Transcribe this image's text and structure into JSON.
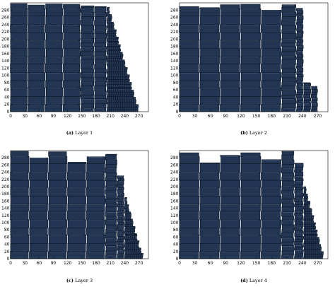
{
  "chart_data": [
    {
      "type": "bar",
      "caption_tag": "(a)",
      "caption_text": "Layer 1",
      "xticks": [
        0,
        30,
        60,
        90,
        120,
        150,
        180,
        210,
        240,
        270
      ],
      "yticks": [
        0,
        20,
        40,
        60,
        80,
        100,
        120,
        140,
        160,
        180,
        200,
        220,
        240,
        260,
        280
      ],
      "xlim": [
        0,
        290
      ],
      "ylim": [
        0,
        300
      ],
      "x_tick_labels": [
        "0",
        "30",
        "60",
        "90",
        "120",
        "150",
        "180",
        "210",
        "240",
        "270"
      ],
      "y_tick_labels": [
        "0",
        "20",
        "40",
        "60",
        "80",
        "100",
        "120",
        "140",
        "160",
        "180",
        "200",
        "220",
        "240",
        "260",
        "280"
      ],
      "stacks": [
        {
          "x0": 0,
          "x1": 36,
          "top": 298
        },
        {
          "x0": 37,
          "x1": 73,
          "top": 294
        },
        {
          "x0": 74,
          "x1": 110,
          "top": 297
        },
        {
          "x0": 111,
          "x1": 147,
          "top": 296
        },
        {
          "x0": 148,
          "x1": 176,
          "top": 292
        },
        {
          "x0": 177,
          "x1": 202,
          "top": 290
        }
      ],
      "tail": {
        "x0": 203,
        "x1": 268,
        "heights": [
          288,
          268,
          247,
          226,
          206,
          185,
          164,
          143,
          122,
          102,
          81,
          60,
          40,
          20
        ]
      }
    },
    {
      "type": "bar",
      "caption_tag": "(b)",
      "caption_text": "Layer 2",
      "xticks": [
        0,
        30,
        60,
        90,
        120,
        150,
        180,
        210,
        240,
        270
      ],
      "yticks": [
        0,
        20,
        40,
        60,
        80,
        100,
        120,
        140,
        160,
        180,
        200,
        220,
        240,
        260,
        280
      ],
      "xlim": [
        0,
        290
      ],
      "ylim": [
        0,
        300
      ],
      "x_tick_labels": [
        "0",
        "30",
        "60",
        "90",
        "120",
        "150",
        "180",
        "210",
        "240",
        "270"
      ],
      "y_tick_labels": [
        "0",
        "20",
        "40",
        "60",
        "80",
        "100",
        "120",
        "140",
        "160",
        "180",
        "200",
        "220",
        "240",
        "260",
        "280"
      ],
      "stacks": [
        {
          "x0": 0,
          "x1": 39,
          "top": 290
        },
        {
          "x0": 40,
          "x1": 79,
          "top": 287
        },
        {
          "x0": 80,
          "x1": 119,
          "top": 295
        },
        {
          "x0": 120,
          "x1": 159,
          "top": 296
        },
        {
          "x0": 160,
          "x1": 199,
          "top": 280
        },
        {
          "x0": 200,
          "x1": 228,
          "top": 295
        },
        {
          "x0": 229,
          "x1": 242,
          "top": 285
        },
        {
          "x0": 243,
          "x1": 257,
          "top": 80
        },
        {
          "x0": 258,
          "x1": 270,
          "top": 70
        }
      ],
      "tail": {
        "x0": 271,
        "x1": 272,
        "heights": []
      }
    },
    {
      "type": "bar",
      "caption_tag": "(c)",
      "caption_text": "Layer 3",
      "xticks": [
        0,
        30,
        60,
        90,
        120,
        150,
        180,
        210,
        240,
        270
      ],
      "yticks": [
        0,
        20,
        40,
        60,
        80,
        100,
        120,
        140,
        160,
        180,
        200,
        220,
        240,
        260,
        280
      ],
      "xlim": [
        0,
        290
      ],
      "ylim": [
        0,
        300
      ],
      "x_tick_labels": [
        "0",
        "30",
        "60",
        "90",
        "120",
        "150",
        "180",
        "210",
        "240",
        "270"
      ],
      "y_tick_labels": [
        "0",
        "20",
        "40",
        "60",
        "80",
        "100",
        "120",
        "140",
        "160",
        "180",
        "200",
        "220",
        "240",
        "260",
        "280"
      ],
      "stacks": [
        {
          "x0": 0,
          "x1": 39,
          "top": 298
        },
        {
          "x0": 40,
          "x1": 79,
          "top": 280
        },
        {
          "x0": 80,
          "x1": 119,
          "top": 297
        },
        {
          "x0": 120,
          "x1": 159,
          "top": 268
        },
        {
          "x0": 160,
          "x1": 199,
          "top": 283
        },
        {
          "x0": 200,
          "x1": 224,
          "top": 290
        },
        {
          "x0": 225,
          "x1": 239,
          "top": 230
        }
      ],
      "tail": {
        "x0": 240,
        "x1": 278,
        "heights": [
          170,
          150,
          130,
          110,
          90,
          70,
          50,
          30,
          15
        ]
      }
    },
    {
      "type": "bar",
      "caption_tag": "(d)",
      "caption_text": "Layer 4",
      "xticks": [
        0,
        30,
        60,
        90,
        120,
        150,
        180,
        210,
        240,
        270
      ],
      "yticks": [
        0,
        20,
        40,
        60,
        80,
        100,
        120,
        140,
        160,
        180,
        200,
        220,
        240,
        260,
        280
      ],
      "xlim": [
        0,
        290
      ],
      "ylim": [
        0,
        300
      ],
      "x_tick_labels": [
        "0",
        "30",
        "60",
        "90",
        "120",
        "150",
        "180",
        "210",
        "240",
        "270"
      ],
      "y_tick_labels": [
        "0",
        "20",
        "40",
        "60",
        "80",
        "100",
        "120",
        "140",
        "160",
        "180",
        "200",
        "220",
        "240",
        "260",
        "280"
      ],
      "stacks": [
        {
          "x0": 0,
          "x1": 39,
          "top": 294
        },
        {
          "x0": 40,
          "x1": 79,
          "top": 266
        },
        {
          "x0": 80,
          "x1": 119,
          "top": 287
        },
        {
          "x0": 120,
          "x1": 159,
          "top": 294
        },
        {
          "x0": 160,
          "x1": 199,
          "top": 275
        },
        {
          "x0": 200,
          "x1": 224,
          "top": 298
        },
        {
          "x0": 225,
          "x1": 242,
          "top": 265
        }
      ],
      "tail": {
        "x0": 243,
        "x1": 280,
        "heights": [
          200,
          180,
          160,
          140,
          120,
          100,
          80,
          60,
          40,
          20
        ]
      }
    }
  ]
}
